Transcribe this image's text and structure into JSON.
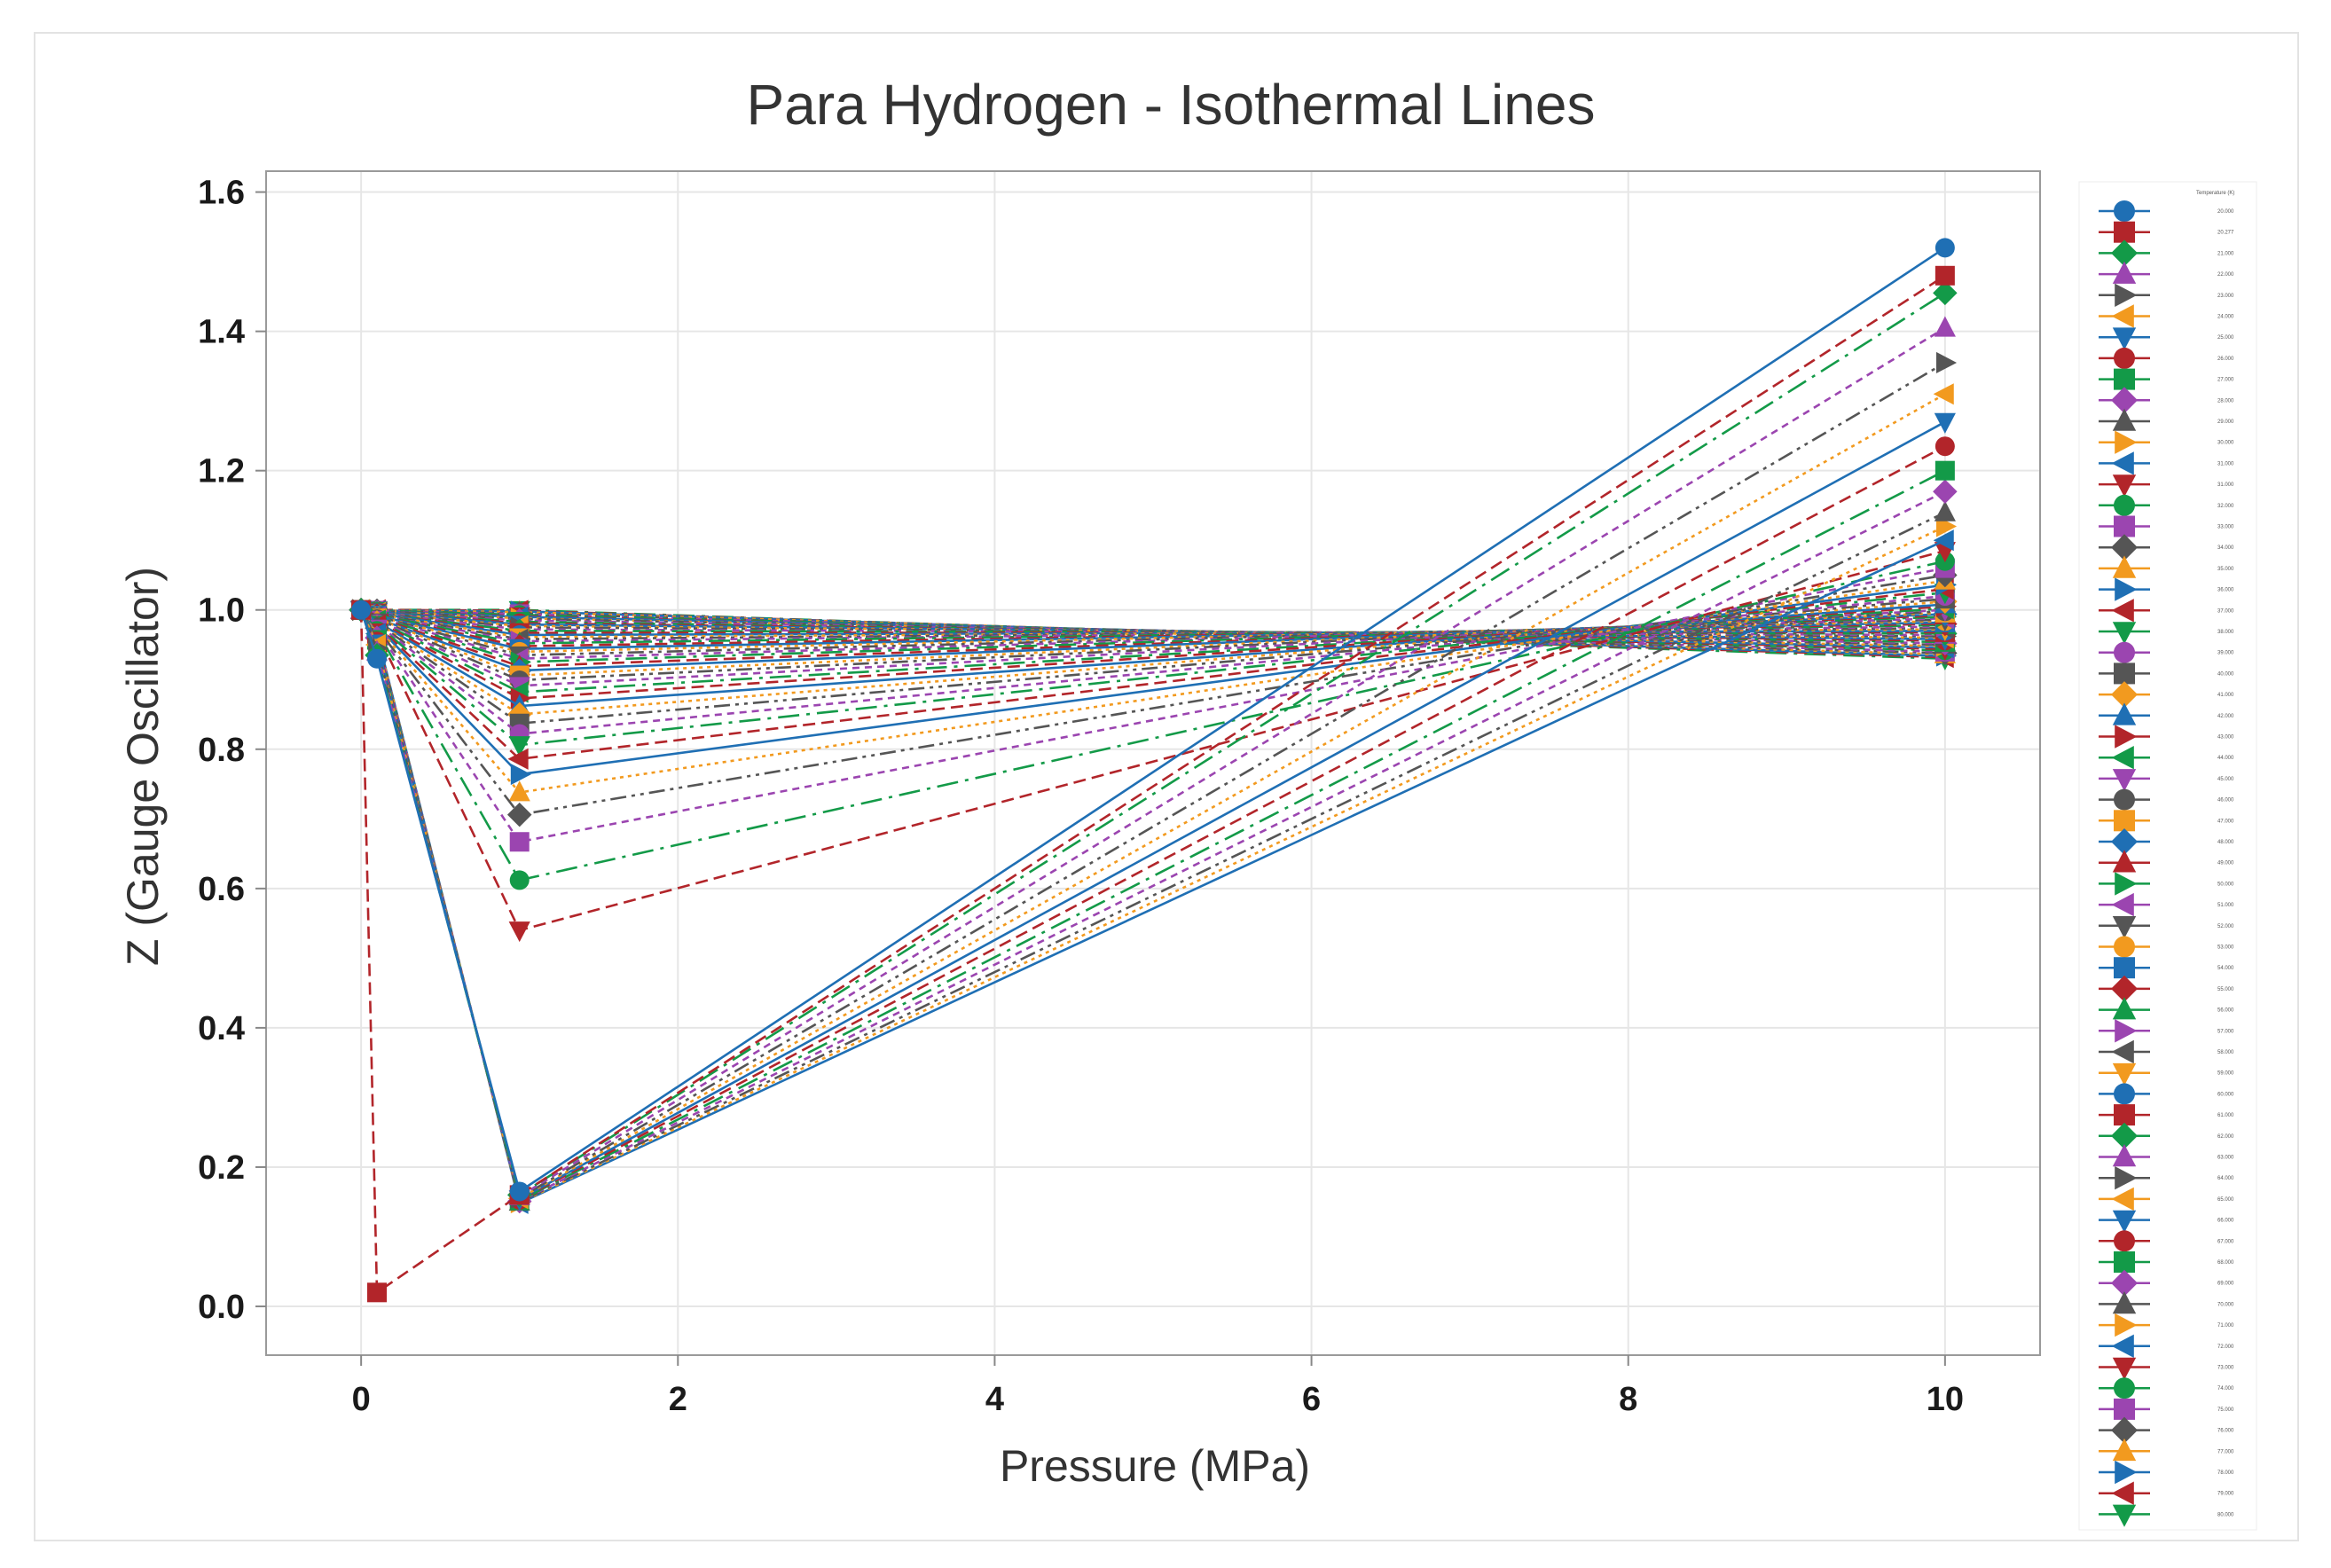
{
  "chart_data": {
    "type": "line",
    "title": "Para Hydrogen - Isothermal Lines",
    "xlabel": "Pressure (MPa)",
    "ylabel": "Z (Gauge Oscillator)",
    "xlim": [
      -0.6,
      10.6
    ],
    "ylim": [
      -0.07,
      1.63
    ],
    "xticks": [
      0,
      2,
      4,
      6,
      8,
      10
    ],
    "yticks": [
      0.0,
      0.2,
      0.4,
      0.6,
      0.8,
      1.0,
      1.2,
      1.4,
      1.6
    ],
    "xtick_labels": [
      "0",
      "2",
      "4",
      "6",
      "8",
      "10"
    ],
    "ytick_labels": [
      "0.0",
      "0.2",
      "0.4",
      "0.6",
      "0.8",
      "1.0",
      "1.2",
      "1.4",
      "1.6"
    ],
    "grid": true,
    "pressures": [
      0,
      0.1,
      1,
      10
    ],
    "legend_title": "Temperature (K)",
    "legend_position": "right",
    "palette": [
      "#1f6fb4",
      "#b2252a",
      "#139a48",
      "#9b45b0",
      "#555555",
      "#f29a1f"
    ],
    "series": [
      {
        "name": "20.000",
        "values": [
          1.0,
          0.93,
          0.165,
          1.52
        ]
      },
      {
        "name": "20.277",
        "values": [
          1.0,
          0.02,
          0.16,
          1.48
        ]
      },
      {
        "name": "21.000",
        "values": [
          1.0,
          0.935,
          0.16,
          1.455
        ]
      },
      {
        "name": "22.000",
        "values": [
          1.0,
          0.94,
          0.158,
          1.405
        ]
      },
      {
        "name": "23.000",
        "values": [
          1.0,
          0.945,
          0.156,
          1.355
        ]
      },
      {
        "name": "24.000",
        "values": [
          1.0,
          0.95,
          0.155,
          1.31
        ]
      },
      {
        "name": "25.000",
        "values": [
          1.0,
          0.952,
          0.154,
          1.27
        ]
      },
      {
        "name": "26.000",
        "values": [
          1.0,
          0.955,
          0.153,
          1.235
        ]
      },
      {
        "name": "27.000",
        "values": [
          1.0,
          0.957,
          0.152,
          1.2
        ]
      },
      {
        "name": "28.000",
        "values": [
          1.0,
          0.96,
          0.151,
          1.17
        ]
      },
      {
        "name": "29.000",
        "values": [
          1.0,
          0.962,
          0.15,
          1.14
        ]
      },
      {
        "name": "30.000",
        "values": [
          1.0,
          0.964,
          0.149,
          1.12
        ]
      },
      {
        "name": "31.000",
        "values": [
          1.0,
          0.966,
          0.148,
          1.1
        ]
      },
      {
        "name": "31.000",
        "values": [
          1.0,
          0.968,
          0.54,
          1.085
        ]
      },
      {
        "name": "32.000",
        "values": [
          1.0,
          0.97,
          0.612,
          1.07
        ]
      },
      {
        "name": "33.000",
        "values": [
          1.0,
          0.972,
          0.667,
          1.06
        ]
      },
      {
        "name": "34.000",
        "values": [
          1.0,
          0.974,
          0.706,
          1.05
        ]
      },
      {
        "name": "35.000",
        "values": [
          1.0,
          0.976,
          0.738,
          1.042
        ]
      },
      {
        "name": "36.000",
        "values": [
          1.0,
          0.977,
          0.764,
          1.036
        ]
      },
      {
        "name": "37.000",
        "values": [
          1.0,
          0.978,
          0.786,
          1.03
        ]
      },
      {
        "name": "38.000",
        "values": [
          1.0,
          0.979,
          0.806,
          1.025
        ]
      },
      {
        "name": "39.000",
        "values": [
          1.0,
          0.98,
          0.822,
          1.02
        ]
      },
      {
        "name": "40.000",
        "values": [
          1.0,
          0.981,
          0.837,
          1.016
        ]
      },
      {
        "name": "41.000",
        "values": [
          1.0,
          0.982,
          0.85,
          1.012
        ]
      },
      {
        "name": "42.000",
        "values": [
          1.0,
          0.983,
          0.862,
          1.008
        ]
      },
      {
        "name": "43.000",
        "values": [
          1.0,
          0.984,
          0.873,
          1.005
        ]
      },
      {
        "name": "44.000",
        "values": [
          1.0,
          0.985,
          0.882,
          1.002
        ]
      },
      {
        "name": "45.000",
        "values": [
          1.0,
          0.986,
          0.891,
          1.0
        ]
      },
      {
        "name": "46.000",
        "values": [
          1.0,
          0.987,
          0.899,
          0.998
        ]
      },
      {
        "name": "47.000",
        "values": [
          1.0,
          0.988,
          0.906,
          0.996
        ]
      },
      {
        "name": "48.000",
        "values": [
          1.0,
          0.988,
          0.913,
          0.994
        ]
      },
      {
        "name": "49.000",
        "values": [
          1.0,
          0.989,
          0.919,
          0.992
        ]
      },
      {
        "name": "50.000",
        "values": [
          1.0,
          0.99,
          0.925,
          0.99
        ]
      },
      {
        "name": "51.000",
        "values": [
          1.0,
          0.99,
          0.93,
          0.988
        ]
      },
      {
        "name": "52.000",
        "values": [
          1.0,
          0.991,
          0.935,
          0.986
        ]
      },
      {
        "name": "53.000",
        "values": [
          1.0,
          0.991,
          0.94,
          0.984
        ]
      },
      {
        "name": "54.000",
        "values": [
          1.0,
          0.992,
          0.944,
          0.982
        ]
      },
      {
        "name": "55.000",
        "values": [
          1.0,
          0.992,
          0.948,
          0.98
        ]
      },
      {
        "name": "56.000",
        "values": [
          1.0,
          0.993,
          0.952,
          0.978
        ]
      },
      {
        "name": "57.000",
        "values": [
          1.0,
          0.993,
          0.955,
          0.976
        ]
      },
      {
        "name": "58.000",
        "values": [
          1.0,
          0.994,
          0.958,
          0.974
        ]
      },
      {
        "name": "59.000",
        "values": [
          1.0,
          0.994,
          0.961,
          0.972
        ]
      },
      {
        "name": "60.000",
        "values": [
          1.0,
          0.995,
          0.964,
          0.97
        ]
      },
      {
        "name": "61.000",
        "values": [
          1.0,
          0.995,
          0.967,
          0.968
        ]
      },
      {
        "name": "62.000",
        "values": [
          1.0,
          0.995,
          0.97,
          0.966
        ]
      },
      {
        "name": "63.000",
        "values": [
          1.0,
          0.996,
          0.972,
          0.964
        ]
      },
      {
        "name": "64.000",
        "values": [
          1.0,
          0.996,
          0.975,
          0.962
        ]
      },
      {
        "name": "65.000",
        "values": [
          1.0,
          0.996,
          0.977,
          0.96
        ]
      },
      {
        "name": "66.000",
        "values": [
          1.0,
          0.997,
          0.979,
          0.958
        ]
      },
      {
        "name": "67.000",
        "values": [
          1.0,
          0.997,
          0.981,
          0.956
        ]
      },
      {
        "name": "68.000",
        "values": [
          1.0,
          0.997,
          0.983,
          0.954
        ]
      },
      {
        "name": "69.000",
        "values": [
          1.0,
          0.997,
          0.985,
          0.952
        ]
      },
      {
        "name": "70.000",
        "values": [
          1.0,
          0.998,
          0.987,
          0.95
        ]
      },
      {
        "name": "71.000",
        "values": [
          1.0,
          0.998,
          0.988,
          0.948
        ]
      },
      {
        "name": "72.000",
        "values": [
          1.0,
          0.998,
          0.99,
          0.946
        ]
      },
      {
        "name": "73.000",
        "values": [
          1.0,
          0.998,
          0.991,
          0.944
        ]
      },
      {
        "name": "74.000",
        "values": [
          1.0,
          0.999,
          0.993,
          0.942
        ]
      },
      {
        "name": "75.000",
        "values": [
          1.0,
          0.999,
          0.994,
          0.94
        ]
      },
      {
        "name": "76.000",
        "values": [
          1.0,
          0.999,
          0.995,
          0.938
        ]
      },
      {
        "name": "77.000",
        "values": [
          1.0,
          0.999,
          0.997,
          0.936
        ]
      },
      {
        "name": "78.000",
        "values": [
          1.0,
          0.999,
          0.998,
          0.934
        ]
      },
      {
        "name": "79.000",
        "values": [
          1.0,
          1.0,
          0.999,
          0.932
        ]
      },
      {
        "name": "80.000",
        "values": [
          1.0,
          1.0,
          1.0,
          0.93
        ]
      }
    ]
  }
}
